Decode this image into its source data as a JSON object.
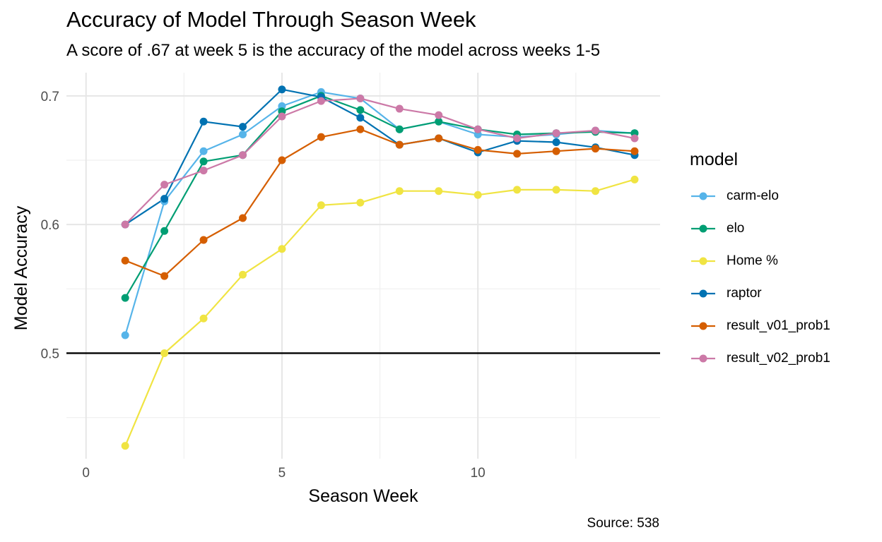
{
  "chart_data": {
    "type": "line",
    "title": "Accuracy of Model Through Season Week",
    "subtitle": "A score of .67 at week 5 is the accuracy of the model across weeks 1-5",
    "xlabel": "Season Week",
    "ylabel": "Model Accuracy",
    "caption": "Source: 538",
    "xlim": [
      -0.5,
      14.65
    ],
    "ylim": [
      0.418,
      0.718
    ],
    "x_ticks": [
      0,
      5,
      10
    ],
    "x_tick_labels": [
      "0",
      "5",
      "10"
    ],
    "y_ticks": [
      0.5,
      0.6,
      0.7
    ],
    "y_tick_labels": [
      "0.5",
      "0.6",
      "0.7"
    ],
    "grid": true,
    "reference_line": {
      "y": 0.5,
      "color": "#000000"
    },
    "legend": {
      "title": "model",
      "position": "right"
    },
    "x": [
      1,
      2,
      3,
      4,
      5,
      6,
      7,
      8,
      9,
      10,
      11,
      12,
      13,
      14
    ],
    "series": [
      {
        "name": "carm-elo",
        "color": "#56B4E9",
        "values": [
          0.514,
          0.618,
          0.657,
          0.67,
          0.692,
          0.703,
          0.698,
          0.674,
          0.68,
          0.67,
          0.668,
          0.67,
          0.673,
          0.671
        ]
      },
      {
        "name": "elo",
        "color": "#009E73",
        "values": [
          0.543,
          0.595,
          0.649,
          0.654,
          0.688,
          0.7,
          0.689,
          0.674,
          0.68,
          0.674,
          0.67,
          0.671,
          0.672,
          0.671
        ]
      },
      {
        "name": "Home %",
        "color": "#F0E442",
        "values": [
          0.428,
          0.5,
          0.527,
          0.561,
          0.581,
          0.615,
          0.617,
          0.626,
          0.626,
          0.623,
          0.627,
          0.627,
          0.626,
          0.635
        ]
      },
      {
        "name": "raptor",
        "color": "#0072B2",
        "values": [
          0.6,
          0.62,
          0.68,
          0.676,
          0.705,
          0.699,
          0.683,
          0.662,
          0.667,
          0.656,
          0.665,
          0.664,
          0.66,
          0.654
        ]
      },
      {
        "name": "result_v01_prob1",
        "color": "#D55E00",
        "values": [
          0.572,
          0.56,
          0.588,
          0.605,
          0.65,
          0.668,
          0.674,
          0.662,
          0.667,
          0.658,
          0.655,
          0.657,
          0.659,
          0.657
        ]
      },
      {
        "name": "result_v02_prob1",
        "color": "#CC79A7",
        "values": [
          0.6,
          0.631,
          0.642,
          0.654,
          0.684,
          0.696,
          0.698,
          0.69,
          0.685,
          0.674,
          0.667,
          0.671,
          0.673,
          0.667
        ]
      }
    ]
  }
}
